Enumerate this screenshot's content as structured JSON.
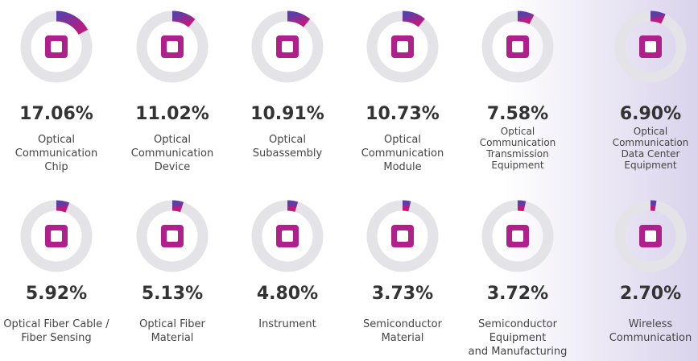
{
  "chart_data": {
    "type": "donut",
    "categories": [
      [
        "Optical",
        "Communication",
        "Chip"
      ],
      [
        "Optical",
        "Communication",
        "Device"
      ],
      [
        "Optical",
        "Subassembly"
      ],
      [
        "Optical",
        "Communication",
        "Module"
      ],
      [
        "Optical",
        "Communication",
        "Transmission",
        "Equipment"
      ],
      [
        "Optical",
        "Communication",
        "Data Center",
        "Equipment"
      ],
      [
        "Optical Fiber Cable /",
        "Fiber Sensing"
      ],
      [
        "Optical Fiber",
        "Material"
      ],
      [
        "Instrument"
      ],
      [
        "Semiconductor",
        "Material"
      ],
      [
        "Semiconductor",
        "Equipment",
        "and Manufacturing"
      ],
      [
        "Wireless",
        "Communication"
      ]
    ],
    "values": [
      17.06,
      11.02,
      10.91,
      10.73,
      7.58,
      6.9,
      5.92,
      5.13,
      4.8,
      3.73,
      3.72,
      2.7
    ],
    "value_labels": [
      "17.06%",
      "11.02%",
      "10.91%",
      "10.73%",
      "7.58%",
      "6.90%",
      "5.92%",
      "5.13%",
      "4.80%",
      "3.73%",
      "3.72%",
      "2.70%"
    ],
    "track_color": "#e3e3e8",
    "color": "#b0208a"
  }
}
